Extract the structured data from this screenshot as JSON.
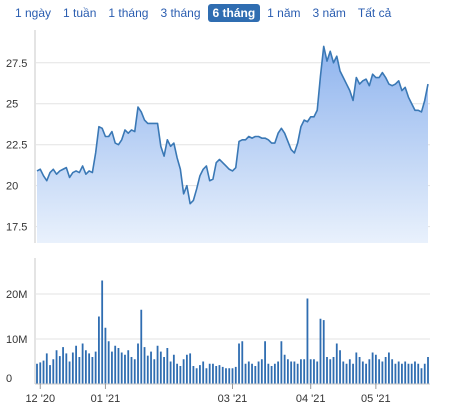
{
  "range_tabs": [
    {
      "label": "1 ngày",
      "active": false
    },
    {
      "label": "1 tuần",
      "active": false
    },
    {
      "label": "1 tháng",
      "active": false
    },
    {
      "label": "3 tháng",
      "active": false
    },
    {
      "label": "6 tháng",
      "active": true
    },
    {
      "label": "1 năm",
      "active": false
    },
    {
      "label": "3 năm",
      "active": false
    },
    {
      "label": "Tất cả",
      "active": false
    }
  ],
  "colors": {
    "line": "#3a78b5",
    "area_top": "#8fb4ee",
    "area_bottom": "#e9f1fc",
    "volume_bar": "#2f6db1",
    "tab_active_bg": "#2f6db1",
    "tab_text": "#2a5db0",
    "grid": "#e3e3e3"
  },
  "chart_data": [
    {
      "type": "area",
      "ylim": [
        16.5,
        29.5
      ],
      "yticks": [
        "17.5",
        "20",
        "22.5",
        "25",
        "27.5"
      ],
      "ytick_values": [
        17.5,
        20,
        22.5,
        25,
        27.5
      ],
      "xlabel": "",
      "ylabel": "",
      "grid": true,
      "series": [
        {
          "values": [
            20.9,
            21.0,
            20.6,
            20.3,
            20.8,
            21.0,
            20.7,
            20.9,
            21.0,
            21.1,
            20.5,
            20.8,
            20.9,
            20.8,
            21.2,
            20.7,
            20.9,
            20.8,
            22.0,
            23.6,
            23.5,
            23.0,
            23.0,
            23.3,
            22.6,
            22.5,
            22.8,
            23.4,
            23.2,
            23.4,
            23.3,
            24.8,
            24.5,
            24.0,
            23.8,
            23.8,
            23.8,
            23.8,
            22.4,
            21.8,
            22.8,
            22.4,
            22.6,
            21.7,
            21.0,
            19.5,
            20.0,
            18.9,
            19.1,
            19.8,
            20.6,
            21.0,
            21.2,
            20.3,
            20.4,
            21.4,
            21.6,
            21.4,
            21.2,
            21.0,
            20.9,
            21.1,
            22.7,
            22.8,
            22.8,
            23.0,
            22.9,
            23.0,
            23.0,
            22.9,
            22.9,
            22.8,
            22.6,
            22.6,
            23.2,
            23.5,
            23.2,
            22.7,
            22.2,
            22.0,
            22.6,
            23.6,
            24.0,
            23.9,
            24.2,
            24.2,
            24.6,
            26.7,
            28.5,
            27.6,
            28.2,
            27.5,
            27.9,
            27.0,
            26.6,
            26.2,
            25.8,
            25.2,
            26.6,
            26.2,
            26.4,
            26.5,
            26.1,
            26.8,
            26.6,
            26.6,
            26.9,
            26.6,
            26.2,
            26.1,
            26.2,
            26.4,
            25.8,
            26.0,
            25.4,
            25.0,
            24.6,
            24.6,
            24.5,
            25.2,
            26.2
          ]
        }
      ]
    },
    {
      "type": "bar",
      "ylim": [
        0,
        28
      ],
      "yticks": [
        "0",
        "10M",
        "20M"
      ],
      "ytick_values": [
        0,
        10,
        20
      ],
      "xticks": [
        {
          "label": "12 '20",
          "index": 1
        },
        {
          "label": "01 '21",
          "index": 21
        },
        {
          "label": "03 '21",
          "index": 60
        },
        {
          "label": "04 '21",
          "index": 84
        },
        {
          "label": "05 '21",
          "index": 104
        }
      ],
      "series": [
        {
          "name": "",
          "unit": "M",
          "values": [
            4.5,
            4.8,
            5.2,
            6.8,
            4.2,
            5.5,
            7.5,
            6.2,
            8.2,
            6.8,
            5.0,
            7.0,
            8.5,
            6.0,
            9.0,
            7.5,
            6.8,
            6.0,
            7.2,
            15.0,
            23.0,
            12.5,
            9.5,
            7.2,
            8.5,
            8.0,
            7.0,
            6.5,
            7.5,
            6.0,
            5.5,
            9.0,
            16.5,
            8.2,
            6.3,
            7.2,
            5.5,
            8.5,
            7.2,
            6.0,
            8.0,
            5.0,
            6.5,
            4.5,
            4.0,
            5.5,
            6.5,
            6.8,
            4.0,
            3.5,
            4.2,
            5.0,
            3.5,
            4.5,
            4.5,
            4.0,
            4.2,
            3.8,
            3.5,
            3.5,
            3.5,
            3.8,
            9.0,
            9.5,
            4.5,
            5.0,
            4.5,
            4.0,
            5.0,
            5.5,
            9.5,
            4.5,
            4.0,
            4.5,
            5.0,
            9.5,
            6.5,
            5.5,
            5.0,
            5.0,
            4.5,
            5.5,
            5.5,
            19.0,
            5.5,
            5.5,
            5.0,
            14.5,
            14.2,
            6.0,
            5.5,
            6.0,
            9.0,
            7.5,
            5.0,
            4.5,
            5.5,
            4.5,
            7.0,
            6.0,
            5.0,
            4.5,
            5.5,
            7.0,
            6.5,
            5.5,
            5.0,
            6.0,
            7.0,
            5.5,
            4.5,
            5.0,
            4.5,
            5.0,
            4.5,
            4.5,
            5.0,
            4.5,
            3.5,
            4.5,
            6.0
          ]
        }
      ]
    }
  ]
}
